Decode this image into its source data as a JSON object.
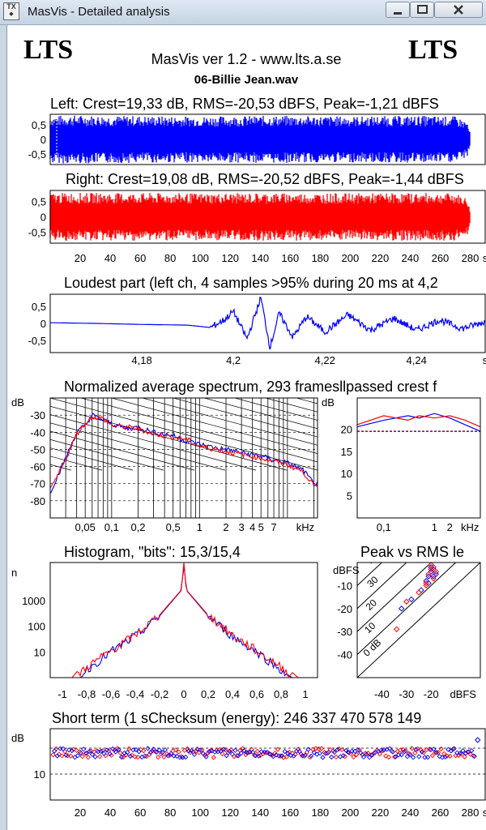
{
  "window": {
    "title": "MasVis - Detailed analysis",
    "icon": "masvis-app-icon",
    "icon_text": "TX"
  },
  "header": {
    "brand_left": "LTS",
    "brand_right": "LTS",
    "version": "MasVis ver 1.2 - www.lts.a.se",
    "file": "06-Billie Jean.wav"
  },
  "colors": {
    "left": "#0000ff",
    "right": "#ff0000",
    "grid": "#000000"
  },
  "panels": {
    "left": {
      "title": "Left: Crest=19,33 dB, RMS=-20,53 dBFS, Peak=-1,21 dBFS"
    },
    "right": {
      "title": "Right: Crest=19,08 dB, RMS=-20,52 dBFS, Peak=-1,44 dBFS"
    },
    "loudest": {
      "title": "Loudest part (left  ch, 4 samples >95% during 20 ms at 4,2"
    },
    "spectrum": {
      "title": "Normalized average spectrum, 293 framesllpassed crest f"
    },
    "histogram": {
      "title": "Histogram, \"bits\": 15,3/15,4"
    },
    "pvr": {
      "title": "Peak vs RMS le"
    },
    "shortterm": {
      "title": "Short term (1 sChecksum (energy):   246 337 470 578 149"
    }
  },
  "chart_data": [
    {
      "id": "left",
      "type": "line",
      "title": "Left: Crest=19,33 dB, RMS=-20,53 dBFS, Peak=-1,21 dBFS",
      "ylim": [
        -0.85,
        0.85
      ],
      "yticks": [
        "0,5",
        "0",
        "-0,5"
      ],
      "ytick_values": [
        0.5,
        0,
        -0.5
      ],
      "xlim": [
        0,
        290
      ],
      "duration_s": 280,
      "envelope": {
        "t": [
          0,
          5,
          10,
          50,
          100,
          150,
          200,
          250,
          270,
          278,
          280
        ],
        "amp": [
          0.82,
          0.8,
          0.82,
          0.8,
          0.78,
          0.8,
          0.78,
          0.8,
          0.78,
          0.6,
          0.2
        ]
      }
    },
    {
      "id": "right",
      "type": "line",
      "title": "Right: Crest=19,08 dB, RMS=-20,52 dBFS, Peak=-1,44 dBFS",
      "ylim": [
        -0.85,
        0.85
      ],
      "yticks": [
        "0,5",
        "0",
        "-0,5"
      ],
      "ytick_values": [
        0.5,
        0,
        -0.5
      ],
      "xlim": [
        0,
        290
      ],
      "xticks": [
        "20",
        "40",
        "60",
        "80",
        "100",
        "120",
        "140",
        "160",
        "180",
        "200",
        "220",
        "240",
        "260",
        "280",
        "s"
      ],
      "xtick_values": [
        20,
        40,
        60,
        80,
        100,
        120,
        140,
        160,
        180,
        200,
        220,
        240,
        260,
        280,
        290
      ],
      "envelope": {
        "t": [
          0,
          5,
          10,
          50,
          100,
          150,
          200,
          250,
          270,
          278,
          280
        ],
        "amp": [
          0.78,
          0.76,
          0.78,
          0.77,
          0.76,
          0.77,
          0.76,
          0.77,
          0.76,
          0.6,
          0.2
        ]
      }
    },
    {
      "id": "loudest",
      "type": "line",
      "title": "Loudest part (left  ch, 4 samples >95% during 20 ms at 4,2",
      "ylim": [
        -0.85,
        0.85
      ],
      "yticks": [
        "0,5",
        "0",
        "-0,5"
      ],
      "ytick_values": [
        0.5,
        0,
        -0.5
      ],
      "xlim": [
        4.16,
        4.255
      ],
      "xticks": [
        "4,18",
        "4,2",
        "4,22",
        "4,24",
        "s"
      ],
      "xtick_values": [
        4.18,
        4.2,
        4.22,
        4.24,
        4.255
      ],
      "t": [
        4.16,
        4.17,
        4.18,
        4.19,
        4.195,
        4.198,
        4.2,
        4.203,
        4.206,
        4.208,
        4.21,
        4.213,
        4.216,
        4.22,
        4.225,
        4.23,
        4.235,
        4.24,
        4.245,
        4.25,
        4.255
      ],
      "y": [
        0.02,
        0.0,
        -0.03,
        -0.05,
        -0.12,
        0.1,
        0.35,
        -0.45,
        0.75,
        -0.7,
        0.3,
        -0.4,
        0.2,
        -0.25,
        0.25,
        -0.2,
        0.15,
        -0.2,
        0.1,
        -0.15,
        0.05
      ]
    },
    {
      "id": "spectrum",
      "type": "line",
      "title": "Normalized average spectrum, 293 framesllpassed crest f",
      "ylabel": "dB",
      "ylim": [
        -90,
        -20
      ],
      "yticks": [
        "-30",
        "-40",
        "-50",
        "-60",
        "-70",
        "-80"
      ],
      "ytick_values": [
        -30,
        -40,
        -50,
        -60,
        -70,
        -80
      ],
      "xscale": "log",
      "xlim": [
        0.02,
        22
      ],
      "xticks": [
        "0,05",
        "0,1",
        "0,2",
        "0,5",
        "1",
        "2",
        "3",
        "4",
        "5",
        "7",
        "kHz"
      ],
      "xtick_values": [
        0.05,
        0.1,
        0.2,
        0.5,
        1,
        2,
        3,
        4,
        5,
        7,
        16
      ],
      "series": [
        {
          "name": "L",
          "color": "#0000ff",
          "x": [
            0.02,
            0.03,
            0.04,
            0.05,
            0.06,
            0.08,
            0.1,
            0.15,
            0.2,
            0.3,
            0.5,
            0.7,
            1,
            1.5,
            2,
            3,
            5,
            7,
            10,
            15,
            20
          ],
          "y": [
            -75,
            -55,
            -40,
            -36,
            -30,
            -33,
            -35,
            -38,
            -37,
            -40,
            -42,
            -45,
            -47,
            -49,
            -50,
            -52,
            -54,
            -56,
            -58,
            -62,
            -70
          ]
        },
        {
          "name": "R",
          "color": "#ff0000",
          "x": [
            0.02,
            0.03,
            0.04,
            0.05,
            0.06,
            0.08,
            0.1,
            0.15,
            0.2,
            0.3,
            0.5,
            0.7,
            1,
            1.5,
            2,
            3,
            5,
            7,
            10,
            15,
            20
          ],
          "y": [
            -74,
            -56,
            -41,
            -35,
            -31,
            -32,
            -36,
            -37,
            -38,
            -41,
            -43,
            -44,
            -48,
            -50,
            -51,
            -53,
            -55,
            -57,
            -59,
            -63,
            -71
          ]
        }
      ]
    },
    {
      "id": "crest",
      "type": "line",
      "ylabel": "dB",
      "ylim": [
        0,
        27
      ],
      "yticks": [
        "20",
        "15",
        "10",
        "5"
      ],
      "ytick_values": [
        20,
        15,
        10,
        5
      ],
      "xscale": "log",
      "xlim": [
        0.03,
        8
      ],
      "xticks": [
        "0,1",
        "1",
        "2",
        "kHz"
      ],
      "xtick_values": [
        0.1,
        1,
        2,
        5
      ],
      "reference_line": 19.5,
      "series": [
        {
          "name": "L",
          "color": "#0000ff",
          "x": [
            0.03,
            0.1,
            0.3,
            0.5,
            1,
            2,
            4,
            8
          ],
          "y": [
            20.5,
            22,
            23,
            22.5,
            23.5,
            22.5,
            21,
            19.5
          ]
        },
        {
          "name": "R",
          "color": "#ff0000",
          "x": [
            0.03,
            0.1,
            0.3,
            0.5,
            1,
            2,
            4,
            8
          ],
          "y": [
            21,
            23,
            22,
            23,
            22.5,
            23,
            22,
            20.5
          ]
        }
      ]
    },
    {
      "id": "histogram",
      "type": "line",
      "title": "Histogram, \"bits\": 15,3/15,4",
      "ylabel": "n",
      "yscale": "log",
      "ylim": [
        1,
        30000
      ],
      "yticks": [
        "1000",
        "100",
        "10"
      ],
      "ytick_values": [
        1000,
        100,
        10
      ],
      "xlim": [
        -1.1,
        1.1
      ],
      "xticks": [
        "-1",
        "-0,8",
        "-0,6",
        "-0,4",
        "-0,2",
        "0",
        "0,2",
        "0,4",
        "0,6",
        "0,8",
        "1"
      ],
      "xtick_values": [
        -1,
        -0.8,
        -0.6,
        -0.4,
        -0.2,
        0,
        0.2,
        0.4,
        0.6,
        0.8,
        1
      ],
      "series": [
        {
          "name": "L",
          "color": "#0000ff",
          "x": [
            -0.85,
            -0.8,
            -0.6,
            -0.4,
            -0.2,
            -0.1,
            -0.02,
            0,
            0.02,
            0.1,
            0.2,
            0.4,
            0.6,
            0.8,
            0.85
          ],
          "y": [
            1.2,
            2,
            10,
            40,
            250,
            900,
            2500,
            30000,
            2500,
            900,
            250,
            40,
            10,
            2,
            1.2
          ]
        },
        {
          "name": "R",
          "color": "#ff0000",
          "x": [
            -0.88,
            -0.8,
            -0.6,
            -0.4,
            -0.2,
            -0.1,
            -0.02,
            0,
            0.02,
            0.1,
            0.2,
            0.4,
            0.6,
            0.8,
            0.9
          ],
          "y": [
            1.2,
            2.5,
            11,
            45,
            270,
            950,
            2600,
            30000,
            2600,
            950,
            270,
            45,
            11,
            2.5,
            1.2
          ]
        }
      ]
    },
    {
      "id": "pvr",
      "type": "scatter",
      "title": "Peak vs RMS le",
      "ylabel": "dBFS",
      "xlabel": "dBFS",
      "xlim": [
        -50,
        0
      ],
      "ylim": [
        -50,
        0
      ],
      "yticks": [
        "-10",
        "-20",
        "-30",
        "-40"
      ],
      "ytick_values": [
        -10,
        -20,
        -30,
        -40
      ],
      "xticks": [
        "-40",
        "-30",
        "-20",
        "dBFS"
      ],
      "xtick_values": [
        -40,
        -30,
        -20,
        -7
      ],
      "diagonals": [
        "40",
        "30",
        "20",
        "10",
        "0 dB"
      ],
      "diagonal_values": [
        40,
        30,
        20,
        10,
        0
      ],
      "series": [
        {
          "name": "L",
          "color": "#0000ff",
          "x": [
            -32,
            -28,
            -24,
            -22,
            -21,
            -20,
            -19,
            -18,
            -20,
            -19,
            -21
          ],
          "y": [
            -20,
            -16,
            -12,
            -8,
            -6,
            -4,
            -3,
            -5,
            -2,
            -6,
            -9
          ]
        },
        {
          "name": "R",
          "color": "#ff0000",
          "x": [
            -34,
            -30,
            -25,
            -22,
            -21,
            -20,
            -19,
            -18,
            -20,
            -19,
            -22
          ],
          "y": [
            -29,
            -17,
            -13,
            -9,
            -5,
            -3,
            -2,
            -4,
            -1,
            -7,
            -10
          ]
        }
      ]
    },
    {
      "id": "shortterm",
      "type": "scatter",
      "title": "Short term (1 sChecksum (energy):   246 337 470 578 149",
      "ylabel": "dB",
      "ylim": [
        2,
        24
      ],
      "yticks": [
        "10"
      ],
      "ytick_values": [
        10
      ],
      "xlim": [
        0,
        290
      ],
      "xticks": [
        "20",
        "40",
        "60",
        "80",
        "100",
        "120",
        "140",
        "160",
        "180",
        "200",
        "220",
        "240",
        "260",
        "280",
        "s"
      ],
      "xtick_values": [
        20,
        40,
        60,
        80,
        100,
        120,
        140,
        160,
        180,
        200,
        220,
        240,
        260,
        280,
        290
      ],
      "reference_lines": [
        18,
        10
      ],
      "mean": 16.5,
      "spread": 1.4,
      "samples": 145,
      "outliers": [
        {
          "t": 285,
          "y": 20.5
        }
      ]
    }
  ]
}
